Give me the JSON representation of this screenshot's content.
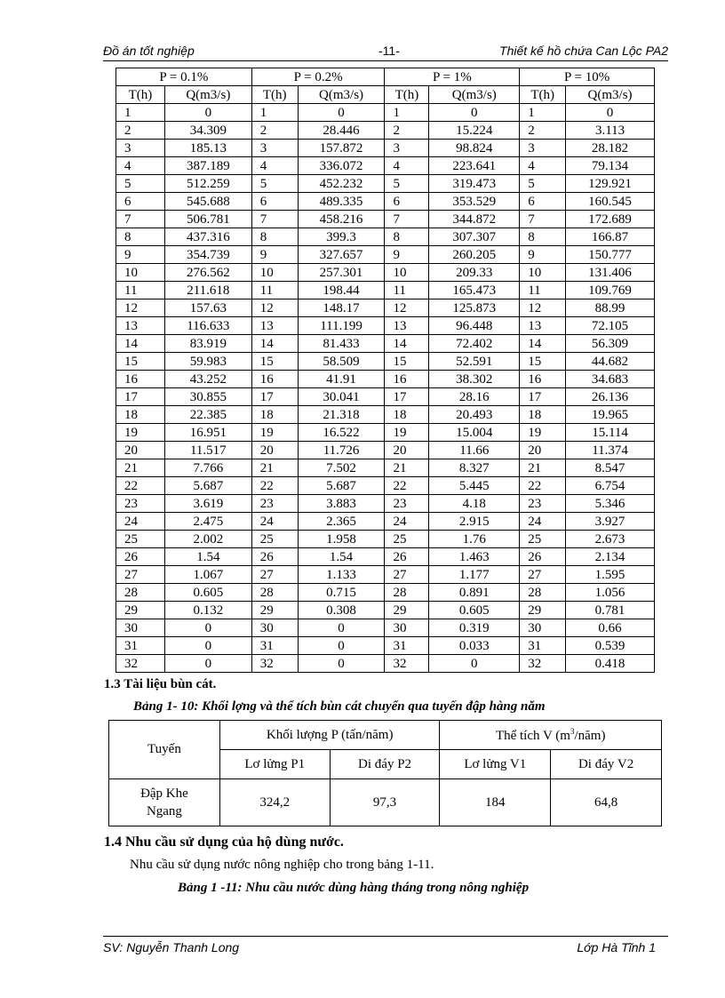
{
  "header": {
    "left": "Đồ án tốt nghiệp",
    "center": "-11-",
    "right": "Thiết kế hồ chứa  Can Lộc PA2"
  },
  "flood_table": {
    "groups": [
      "P = 0.1%",
      "P = 0.2%",
      "P = 1%",
      "P = 10%"
    ],
    "col_t": "T(h)",
    "col_q": "Q(m3/s)",
    "hours": [
      1,
      2,
      3,
      4,
      5,
      6,
      7,
      8,
      9,
      10,
      11,
      12,
      13,
      14,
      15,
      16,
      17,
      18,
      19,
      20,
      21,
      22,
      23,
      24,
      25,
      26,
      27,
      28,
      29,
      30,
      31,
      32
    ],
    "q": [
      [
        "0",
        "34.309",
        "185.13",
        "387.189",
        "512.259",
        "545.688",
        "506.781",
        "437.316",
        "354.739",
        "276.562",
        "211.618",
        "157.63",
        "116.633",
        "83.919",
        "59.983",
        "43.252",
        "30.855",
        "22.385",
        "16.951",
        "11.517",
        "7.766",
        "5.687",
        "3.619",
        "2.475",
        "2.002",
        "1.54",
        "1.067",
        "0.605",
        "0.132",
        "0",
        "0",
        "0"
      ],
      [
        "0",
        "28.446",
        "157.872",
        "336.072",
        "452.232",
        "489.335",
        "458.216",
        "399.3",
        "327.657",
        "257.301",
        "198.44",
        "148.17",
        "111.199",
        "81.433",
        "58.509",
        "41.91",
        "30.041",
        "21.318",
        "16.522",
        "11.726",
        "7.502",
        "5.687",
        "3.883",
        "2.365",
        "1.958",
        "1.54",
        "1.133",
        "0.715",
        "0.308",
        "0",
        "0",
        "0"
      ],
      [
        "0",
        "15.224",
        "98.824",
        "223.641",
        "319.473",
        "353.529",
        "344.872",
        "307.307",
        "260.205",
        "209.33",
        "165.473",
        "125.873",
        "96.448",
        "72.402",
        "52.591",
        "38.302",
        "28.16",
        "20.493",
        "15.004",
        "11.66",
        "8.327",
        "5.445",
        "4.18",
        "2.915",
        "1.76",
        "1.463",
        "1.177",
        "0.891",
        "0.605",
        "0.319",
        "0.033",
        "0"
      ],
      [
        "0",
        "3.113",
        "28.182",
        "79.134",
        "129.921",
        "160.545",
        "172.689",
        "166.87",
        "150.777",
        "131.406",
        "109.769",
        "88.99",
        "72.105",
        "56.309",
        "44.682",
        "34.683",
        "26.136",
        "19.965",
        "15.114",
        "11.374",
        "8.547",
        "6.754",
        "5.346",
        "3.927",
        "2.673",
        "2.134",
        "1.595",
        "1.056",
        "0.781",
        "0.66",
        "0.539",
        "0.418"
      ]
    ]
  },
  "section_13": "1.3  Tài liệu bùn  cát.",
  "table_10": {
    "caption": "Bảng 1- 10: Khối lợng    và thể tích bùn cát chuyển qua tuyến đập hàng năm",
    "col_route": "Tuyến",
    "group_p": "Khối lượng P (tấn/năm)",
    "group_v_pre": "Thể  tích V (m",
    "group_v_sup": "3",
    "group_v_post": "/năm)",
    "sub": [
      "Lơ lửng P1",
      "Di đáy P2",
      "Lơ lửng V1",
      "Di đáy V2"
    ],
    "row_name": "Đập Khe Ngang",
    "row_values": [
      "324,2",
      "97,3",
      "184",
      "64,8"
    ]
  },
  "section_14": "1.4  Nhu cầu sử dụng của hộ dùng nước.",
  "paragraph": "Nhu cầu sử dụng nước nông nghiệp cho trong bảng 1-11.",
  "table_11_caption": "Bảng 1 -11: Nhu cầu nước    dùng hàng tháng trong nông nghiệp",
  "footer": {
    "left": "SV: Nguyễn Thanh Long",
    "right": "Lớp Hà Tĩnh 1"
  }
}
